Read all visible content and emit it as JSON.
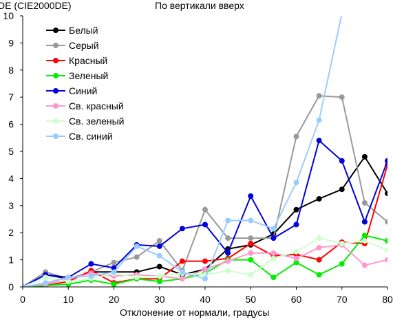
{
  "chart_data": {
    "type": "line",
    "title": "По вертикали вверх",
    "ylabel": "DE (CIE2000DE)",
    "xlabel": "Отклонение от нормали, градусы",
    "xlim": [
      0,
      80
    ],
    "ylim": [
      0,
      10
    ],
    "x_ticks": [
      0,
      10,
      20,
      30,
      40,
      50,
      60,
      70,
      80
    ],
    "y_ticks": [
      0,
      1,
      2,
      3,
      4,
      5,
      6,
      7,
      8,
      9,
      10
    ],
    "grid": false,
    "legend_position": "top-left",
    "x": [
      0,
      5,
      10,
      15,
      20,
      25,
      30,
      35,
      40,
      45,
      50,
      55,
      60,
      65,
      70,
      75,
      80
    ],
    "series": [
      {
        "name": "Белый",
        "color": "#000000",
        "values": [
          0,
          0.45,
          0.3,
          0.55,
          0.55,
          0.55,
          0.75,
          0.45,
          0.65,
          1.4,
          1.55,
          1.95,
          2.85,
          3.25,
          3.6,
          4.8,
          3.45
        ]
      },
      {
        "name": "Серый",
        "color": "#999999",
        "values": [
          0,
          0.55,
          0.3,
          0.55,
          0.9,
          1.1,
          1.7,
          0.6,
          2.85,
          1.8,
          1.8,
          1.8,
          5.55,
          7.05,
          7.0,
          3.1,
          2.4
        ]
      },
      {
        "name": "Красный",
        "color": "#ff0000",
        "values": [
          0,
          0.05,
          0.2,
          0.6,
          0.15,
          0.3,
          0.3,
          0.95,
          0.95,
          1.05,
          1.6,
          1.15,
          1.2,
          1.0,
          1.65,
          1.6,
          4.5
        ]
      },
      {
        "name": "Зеленый",
        "color": "#00ee00",
        "values": [
          0,
          0.05,
          0.1,
          0.25,
          0.1,
          0.3,
          0.2,
          0.3,
          0.5,
          1.0,
          1.0,
          0.35,
          0.9,
          0.45,
          0.85,
          1.9,
          1.7
        ]
      },
      {
        "name": "Синий",
        "color": "#0000dd",
        "values": [
          0,
          0.45,
          0.35,
          0.85,
          0.7,
          1.55,
          1.5,
          2.15,
          2.3,
          1.25,
          3.35,
          1.8,
          2.3,
          5.4,
          4.65,
          2.4,
          4.65
        ]
      },
      {
        "name": "Св. красный",
        "color": "#ff99cc",
        "values": [
          0,
          0.1,
          0.3,
          0.5,
          0.4,
          0.45,
          0.4,
          0.3,
          0.65,
          0.95,
          1.25,
          1.25,
          1.05,
          1.45,
          1.55,
          0.8,
          1.0
        ]
      },
      {
        "name": "Св. зеленый",
        "color": "#ccffcc",
        "values": [
          0,
          0.35,
          0.2,
          0.3,
          0.5,
          0.35,
          0.4,
          0.5,
          0.45,
          0.6,
          0.45,
          1.05,
          1.3,
          1.8,
          1.6,
          1.7,
          1.35
        ]
      },
      {
        "name": "Св. синий",
        "color": "#99ccff",
        "values": [
          0,
          0.15,
          0.35,
          0.4,
          0.55,
          1.5,
          1.15,
          0.55,
          0.3,
          2.45,
          2.45,
          2.15,
          3.85,
          6.15,
          10.1,
          null,
          null
        ]
      }
    ]
  }
}
